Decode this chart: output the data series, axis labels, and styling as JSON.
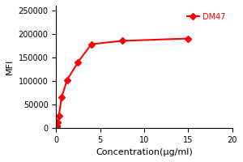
{
  "x": [
    0.04,
    0.08,
    0.16,
    0.31,
    0.63,
    1.25,
    2.5,
    4.0,
    7.5,
    15.0
  ],
  "y": [
    1000,
    5000,
    12000,
    25000,
    65000,
    102000,
    140000,
    178000,
    185000,
    190000
  ],
  "line_color": "#FF0000",
  "marker": "D",
  "marker_size": 4,
  "label": "DM47",
  "xlabel": "Concentration(μg/ml)",
  "ylabel": "MFI",
  "xlim": [
    0,
    20
  ],
  "ylim": [
    0,
    260000
  ],
  "yticks": [
    0,
    50000,
    100000,
    150000,
    200000,
    250000
  ],
  "xticks": [
    0,
    5,
    10,
    15,
    20
  ],
  "background_color": "#ffffff",
  "legend_loc": "upper right"
}
